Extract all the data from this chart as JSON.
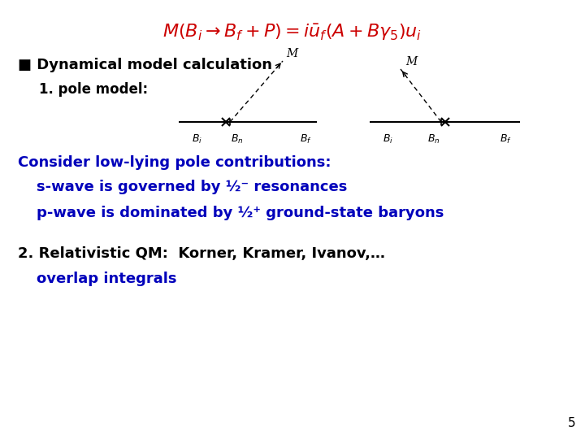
{
  "bg_color": "#ffffff",
  "title_color": "#cc0000",
  "title_fontsize": 16,
  "bullet_text": "■ Dynamical model calculation",
  "bullet_color": "#000000",
  "bullet_fontsize": 13,
  "item1_text": "1. pole model:",
  "item1_color": "#000000",
  "item1_fontsize": 12,
  "consider_text": "Consider low-lying pole contributions:",
  "consider_color": "#0000bb",
  "consider_fontsize": 13,
  "swave_text": "s-wave is governed by ½⁻ resonances",
  "swave_color": "#0000bb",
  "swave_fontsize": 13,
  "pwave_text": "p-wave is dominated by ½⁺ ground-state baryons",
  "pwave_color": "#0000bb",
  "pwave_fontsize": 13,
  "item2_text": "2. Relativistic QM:  Korner, Kramer, Ivanov,…",
  "item2_color": "#000000",
  "item2_fontsize": 13,
  "overlap_text": "overlap integrals",
  "overlap_color": "#0000bb",
  "overlap_fontsize": 13,
  "page_number": "5",
  "diagram_color": "#000000",
  "diagram_M_label": "M",
  "d1_labels": [
    "$B_i$",
    "$B_n$",
    "$B_f$"
  ],
  "d2_labels": [
    "$B_i$",
    "$B_n$",
    "$B_f$"
  ]
}
